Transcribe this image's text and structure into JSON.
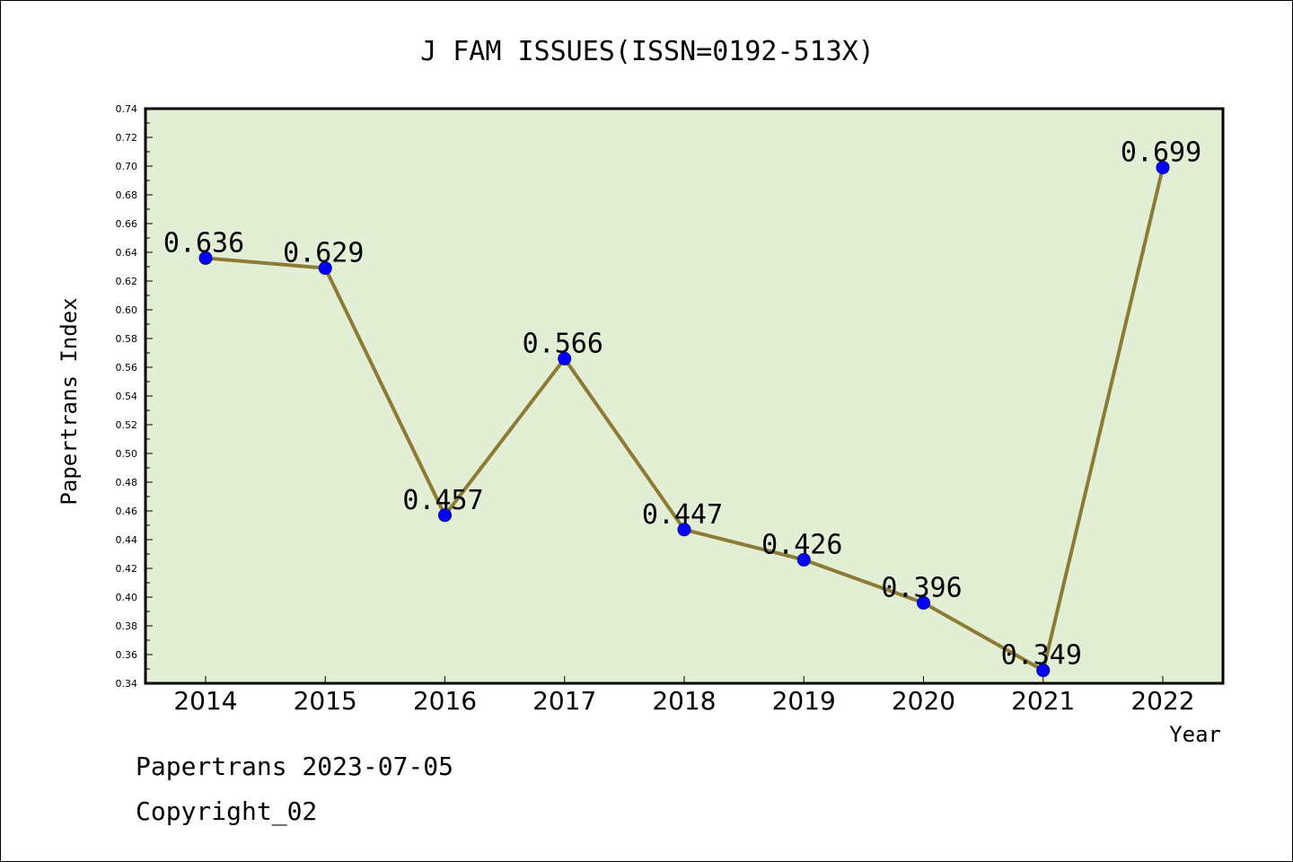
{
  "chart_data": {
    "type": "line",
    "title": "J FAM ISSUES(ISSN=0192-513X)",
    "xlabel": "Year",
    "ylabel": "Papertrans Index",
    "categories": [
      "2014",
      "2015",
      "2016",
      "2017",
      "2018",
      "2019",
      "2020",
      "2021",
      "2022"
    ],
    "series": [
      {
        "values": [
          0.636,
          0.629,
          0.457,
          0.566,
          0.447,
          0.426,
          0.396,
          0.349,
          0.699
        ]
      }
    ],
    "data_labels": [
      "0.636",
      "0.629",
      "0.457",
      "0.566",
      "0.447",
      "0.426",
      "0.396",
      "0.349",
      "0.699"
    ],
    "ylim": [
      0.34,
      0.74
    ],
    "yticks": [
      "0.34",
      "0.36",
      "0.38",
      "0.40",
      "0.42",
      "0.44",
      "0.46",
      "0.48",
      "0.50",
      "0.52",
      "0.54",
      "0.56",
      "0.58",
      "0.60",
      "0.62",
      "0.64",
      "0.66",
      "0.68",
      "0.70",
      "0.72",
      "0.74"
    ],
    "grid": false,
    "colors": {
      "plot_background": "#e2efd5",
      "line": "#8c7a35",
      "marker": "#0000ff"
    }
  },
  "footer": {
    "line1": "Papertrans 2023-07-05",
    "line2": "Copyright_02"
  }
}
